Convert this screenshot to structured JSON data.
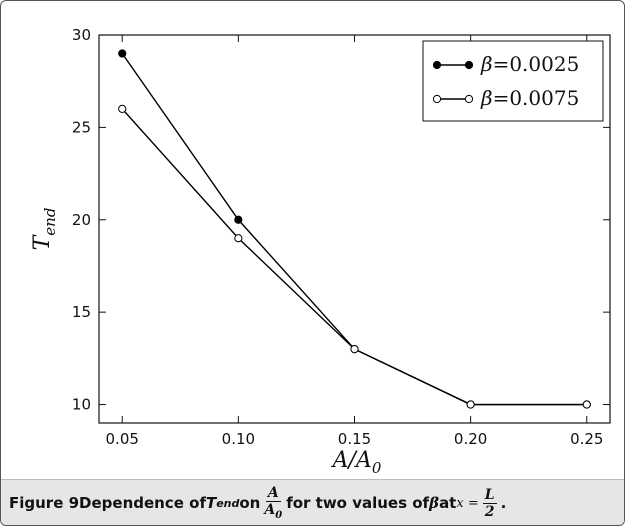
{
  "chart_data": {
    "type": "line",
    "x": [
      0.05,
      0.1,
      0.15,
      0.2,
      0.25
    ],
    "xticks": [
      "0.05",
      "0.10",
      "0.15",
      "0.20",
      "0.25"
    ],
    "yticks": [
      "10",
      "15",
      "20",
      "25",
      "30"
    ],
    "xlim": [
      0.04,
      0.26
    ],
    "ylim": [
      9,
      30
    ],
    "xlabel": {
      "base": "A/A",
      "sub": "0"
    },
    "ylabel": {
      "base": "T",
      "sub": "end"
    },
    "legend_position": "top-right",
    "grid": false,
    "series": [
      {
        "name": "β=0.0025",
        "greek": "β",
        "eq": "=0.0025",
        "marker": "filled",
        "color": "#000000",
        "values": [
          29,
          20,
          13,
          10,
          10
        ]
      },
      {
        "name": "β=0.0075",
        "greek": "β",
        "eq": "=0.0075",
        "marker": "open",
        "color": "#000000",
        "values": [
          26,
          19,
          13,
          10,
          10
        ]
      }
    ]
  },
  "caption": {
    "label": "Figure 9",
    "text1": " Dependence of ",
    "t_base": "T",
    "t_sub": "end",
    "text2": " on ",
    "frac_num": "A",
    "frac_den_base": "A",
    "frac_den_sub": "0",
    "text3": " for two values of ",
    "beta": "β",
    "text4": " at ",
    "x_eq": "x = ",
    "frac2_num": "L",
    "frac2_den": "2",
    "end": "."
  }
}
